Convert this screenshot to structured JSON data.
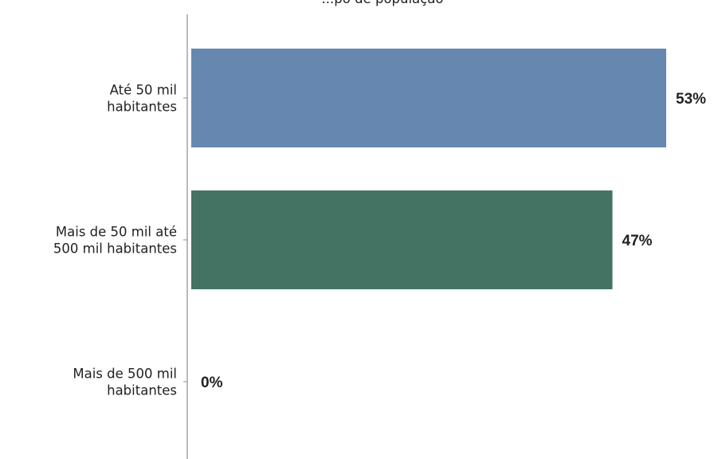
{
  "chart_data": {
    "type": "bar",
    "orientation": "horizontal",
    "title": "...po de população",
    "categories": [
      [
        "Até 50 mil",
        "habitantes"
      ],
      [
        "Mais de 50 mil até",
        "500 mil habitantes"
      ],
      [
        "Mais de 500 mil",
        "habitantes"
      ]
    ],
    "values": [
      53,
      47,
      0
    ],
    "value_labels": [
      "53%",
      "47%",
      "0%"
    ],
    "colors": [
      "#6688b0",
      "#437362",
      "#437362"
    ],
    "xlim": [
      0,
      53
    ],
    "grid": false,
    "legend": "none"
  }
}
